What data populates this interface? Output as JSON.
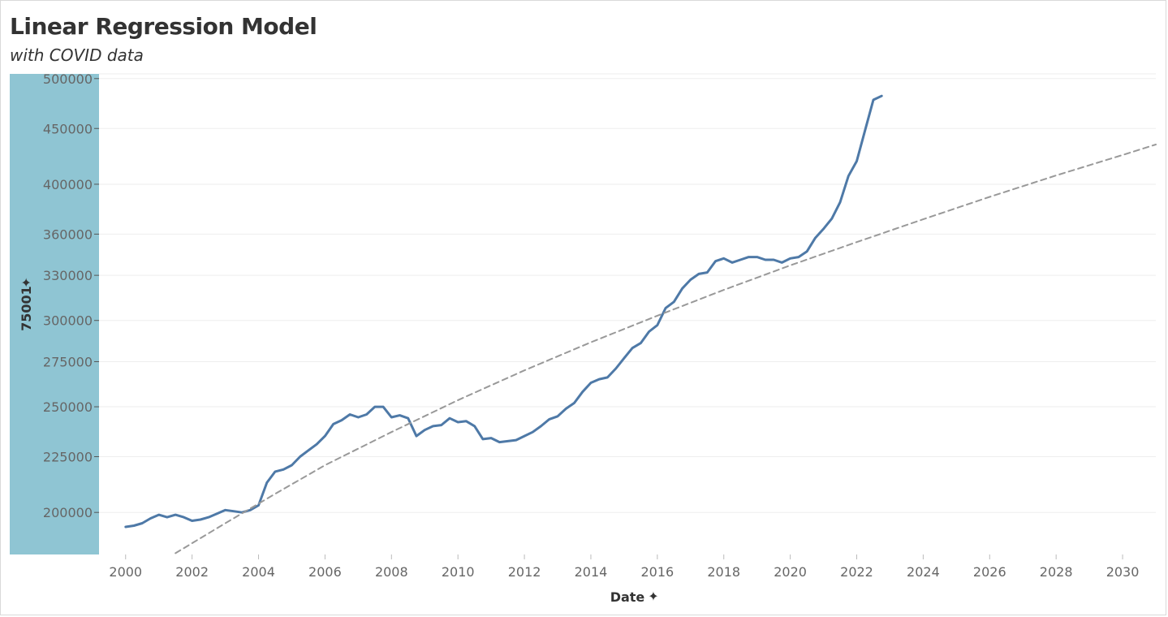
{
  "title": "Linear Regression Model",
  "subtitle": "with COVID data",
  "colors": {
    "series": "#4e79a7",
    "trend": "#999999",
    "band": "#8fc5d3",
    "grid": "#eeeeee"
  },
  "chart_data": {
    "type": "line",
    "title": "Linear Regression Model",
    "subtitle": "with COVID data",
    "xlabel": "Date",
    "ylabel": "75001",
    "x_ticks": [
      "2000",
      "2002",
      "2004",
      "2006",
      "2008",
      "2010",
      "2012",
      "2014",
      "2016",
      "2018",
      "2020",
      "2022",
      "2024",
      "2026",
      "2028",
      "2030"
    ],
    "y_ticks": [
      200000,
      225000,
      250000,
      275000,
      300000,
      330000,
      360000,
      400000,
      450000,
      500000
    ],
    "xlim": [
      1999.2,
      2031.0
    ],
    "ylim": [
      183000,
      505000
    ],
    "y_scale": "log",
    "grid": true,
    "series": [
      {
        "name": "75001",
        "x": [
          2000.0,
          2000.25,
          2000.5,
          2000.75,
          2001.0,
          2001.25,
          2001.5,
          2001.75,
          2002.0,
          2002.25,
          2002.5,
          2002.75,
          2003.0,
          2003.25,
          2003.5,
          2003.75,
          2004.0,
          2004.25,
          2004.5,
          2004.75,
          2005.0,
          2005.25,
          2005.5,
          2005.75,
          2006.0,
          2006.25,
          2006.5,
          2006.75,
          2007.0,
          2007.25,
          2007.5,
          2007.75,
          2008.0,
          2008.25,
          2008.5,
          2008.75,
          2009.0,
          2009.25,
          2009.5,
          2009.75,
          2010.0,
          2010.25,
          2010.5,
          2010.75,
          2011.0,
          2011.25,
          2011.5,
          2011.75,
          2012.0,
          2012.25,
          2012.5,
          2012.75,
          2013.0,
          2013.25,
          2013.5,
          2013.75,
          2014.0,
          2014.25,
          2014.5,
          2014.75,
          2015.0,
          2015.25,
          2015.5,
          2015.75,
          2016.0,
          2016.25,
          2016.5,
          2016.75,
          2017.0,
          2017.25,
          2017.5,
          2017.75,
          2018.0,
          2018.25,
          2018.5,
          2018.75,
          2019.0,
          2019.25,
          2019.5,
          2019.75,
          2020.0,
          2020.25,
          2020.5,
          2020.75,
          2021.0,
          2021.25,
          2021.5,
          2021.75,
          2022.0,
          2022.25,
          2022.5,
          2022.75
        ],
        "values": [
          194000,
          194500,
          195500,
          197500,
          199000,
          198000,
          199000,
          198000,
          196500,
          197000,
          198000,
          199500,
          201000,
          200500,
          200000,
          201000,
          203000,
          213000,
          218000,
          219000,
          221000,
          225000,
          228000,
          231000,
          235000,
          241000,
          243000,
          246000,
          244500,
          246000,
          250000,
          250000,
          244500,
          245500,
          244000,
          235000,
          238000,
          240000,
          240500,
          244000,
          242000,
          242500,
          240000,
          233500,
          234000,
          232000,
          232500,
          233000,
          235000,
          237000,
          240000,
          243500,
          245000,
          249000,
          252000,
          258000,
          263000,
          265000,
          266000,
          271000,
          277000,
          283000,
          286000,
          293000,
          297000,
          308000,
          312000,
          321000,
          327000,
          331000,
          332000,
          340000,
          342000,
          339000,
          341000,
          343000,
          343000,
          341000,
          341000,
          339000,
          342000,
          343000,
          347000,
          357000,
          364000,
          372000,
          385000,
          407000,
          420000,
          448000,
          478000,
          482000
        ]
      },
      {
        "name": "trend",
        "x": [
          2001.5,
          2003,
          2004.5,
          2006,
          2008,
          2010,
          2012,
          2014,
          2016,
          2018,
          2020,
          2022,
          2024,
          2026,
          2028,
          2030,
          2031
        ],
        "values": [
          183500,
          195500,
          208000,
          221000,
          237000,
          253500,
          270000,
          286500,
          303000,
          320000,
          337000,
          354000,
          371500,
          389500,
          407500,
          425500,
          435000
        ]
      }
    ]
  }
}
